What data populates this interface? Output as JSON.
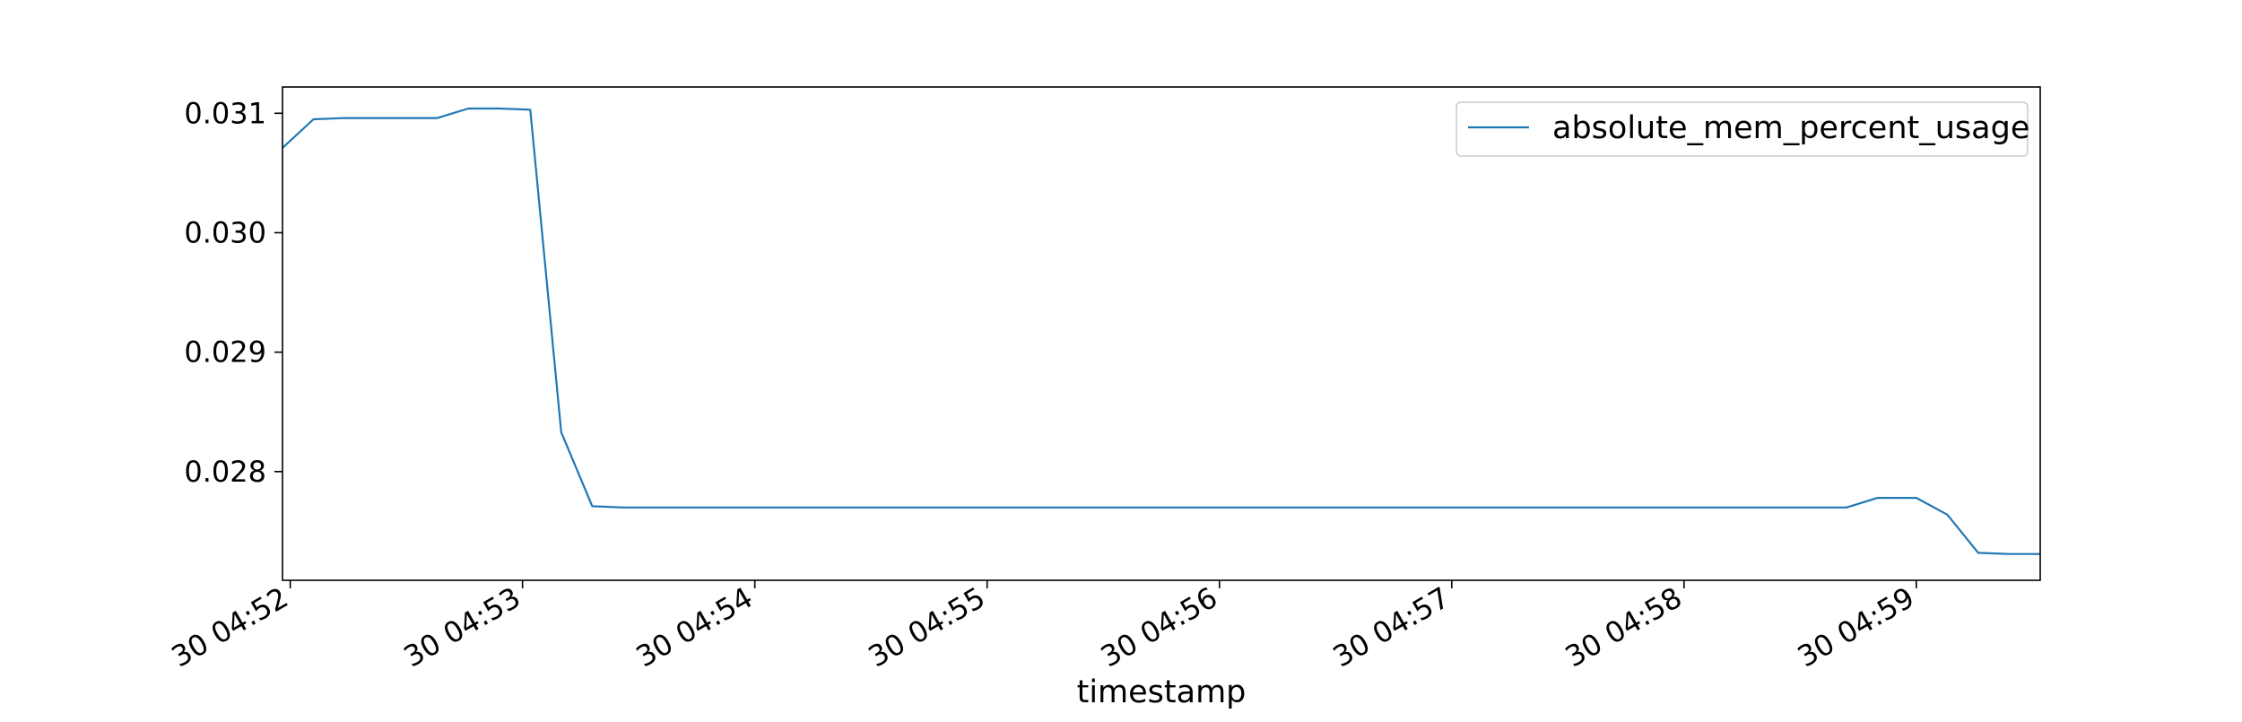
{
  "chart_data": {
    "type": "line",
    "title": "",
    "xlabel": "timestamp",
    "ylabel": "",
    "x_tick_labels": [
      "30 04:52",
      "30 04:53",
      "30 04:54",
      "30 04:55",
      "30 04:56",
      "30 04:57",
      "30 04:58",
      "30 04:59"
    ],
    "y_tick_labels": [
      "0.028",
      "0.029",
      "0.030",
      "0.031"
    ],
    "y_ticks": [
      0.028,
      0.029,
      0.03,
      0.031
    ],
    "xlim": [
      "04:51:58",
      "04:59:32"
    ],
    "ylim": [
      0.02709,
      0.03122
    ],
    "grid": false,
    "legend_position": "top-right",
    "series": [
      {
        "name": "absolute_mem_percent_usage",
        "color": "#1f77b4",
        "x": [
          "04:51:58",
          "04:52:06",
          "04:52:14",
          "04:52:22",
          "04:52:30",
          "04:52:38",
          "04:52:46",
          "04:52:54",
          "04:53:02",
          "04:53:10",
          "04:53:18",
          "04:53:26",
          "04:53:34",
          "04:53:42",
          "04:53:50",
          "04:54:00",
          "04:54:30",
          "04:55:00",
          "04:55:30",
          "04:56:00",
          "04:56:30",
          "04:57:00",
          "04:57:30",
          "04:58:00",
          "04:58:30",
          "04:58:42",
          "04:58:50",
          "04:59:00",
          "04:59:08",
          "04:59:16",
          "04:59:24",
          "04:59:32"
        ],
        "y": [
          0.03071,
          0.03095,
          0.03096,
          0.03096,
          0.03096,
          0.03096,
          0.03104,
          0.03104,
          0.03103,
          0.02833,
          0.02771,
          0.0277,
          0.0277,
          0.0277,
          0.0277,
          0.0277,
          0.0277,
          0.0277,
          0.0277,
          0.0277,
          0.0277,
          0.0277,
          0.0277,
          0.0277,
          0.0277,
          0.0277,
          0.02778,
          0.02778,
          0.02764,
          0.02732,
          0.02731,
          0.02731
        ]
      }
    ]
  }
}
